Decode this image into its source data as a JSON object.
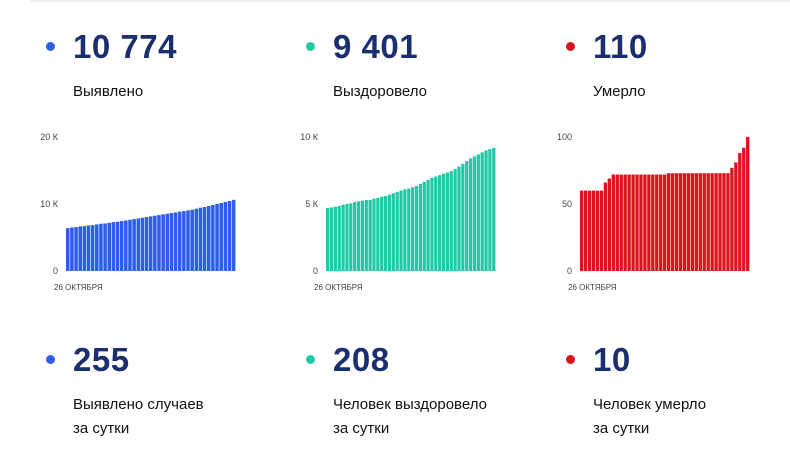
{
  "colors": {
    "detected": "#2f5ee6",
    "recovered": "#23c9a6",
    "died": "#d8151f"
  },
  "totals": [
    {
      "value": "10 774",
      "label": "Выявлено"
    },
    {
      "value": "9 401",
      "label": "Выздоровело"
    },
    {
      "value": "110",
      "label": "Умерло"
    }
  ],
  "daily": [
    {
      "value": "255",
      "label_line1": "Выявлено случаев",
      "label_line2": "за сутки"
    },
    {
      "value": "208",
      "label_line1": "Человек выздоровело",
      "label_line2": "за сутки"
    },
    {
      "value": "10",
      "label_line1": "Человек умерло",
      "label_line2": "за сутки"
    }
  ],
  "chart_data": [
    {
      "type": "bar",
      "x_start_label": "26 ОКТЯБРЯ",
      "ylim": [
        0,
        20000
      ],
      "yticks": [
        {
          "value": 0,
          "label": "0"
        },
        {
          "value": 10000,
          "label": "10 К"
        },
        {
          "value": 20000,
          "label": "20 К"
        }
      ],
      "values": [
        6400,
        6500,
        6550,
        6650,
        6700,
        6800,
        6850,
        6950,
        7050,
        7100,
        7200,
        7300,
        7350,
        7450,
        7550,
        7650,
        7750,
        7850,
        7950,
        8050,
        8150,
        8250,
        8350,
        8450,
        8550,
        8650,
        8750,
        8850,
        8950,
        9050,
        9150,
        9300,
        9450,
        9550,
        9700,
        9850,
        10000,
        10150,
        10300,
        10450,
        10620
      ]
    },
    {
      "type": "bar",
      "x_start_label": "26 ОКТЯБРЯ",
      "ylim": [
        0,
        10000
      ],
      "yticks": [
        {
          "value": 0,
          "label": "0"
        },
        {
          "value": 5000,
          "label": "5 К"
        },
        {
          "value": 10000,
          "label": "10 К"
        }
      ],
      "values": [
        4700,
        4750,
        4800,
        4850,
        4950,
        5000,
        5050,
        5150,
        5200,
        5250,
        5300,
        5300,
        5400,
        5450,
        5550,
        5600,
        5700,
        5800,
        5900,
        6000,
        6100,
        6150,
        6250,
        6350,
        6500,
        6650,
        6800,
        6950,
        7050,
        7150,
        7250,
        7350,
        7450,
        7600,
        7800,
        8000,
        8200,
        8400,
        8550,
        8700,
        8850,
        9000,
        9100,
        9200
      ]
    },
    {
      "type": "bar",
      "x_start_label": "26 ОКТЯБРЯ",
      "ylim": [
        0,
        100
      ],
      "yticks": [
        {
          "value": 0,
          "label": "0"
        },
        {
          "value": 50,
          "label": "50"
        },
        {
          "value": 100,
          "label": "100"
        }
      ],
      "values": [
        60,
        60,
        60,
        60,
        60,
        60,
        66,
        69,
        72,
        72,
        72,
        72,
        72,
        72,
        72,
        72,
        72,
        72,
        72,
        72,
        72,
        72,
        73,
        73,
        73,
        73,
        73,
        73,
        73,
        73,
        73,
        73,
        73,
        73,
        73,
        73,
        73,
        73,
        77,
        81,
        88,
        92,
        100
      ]
    }
  ]
}
